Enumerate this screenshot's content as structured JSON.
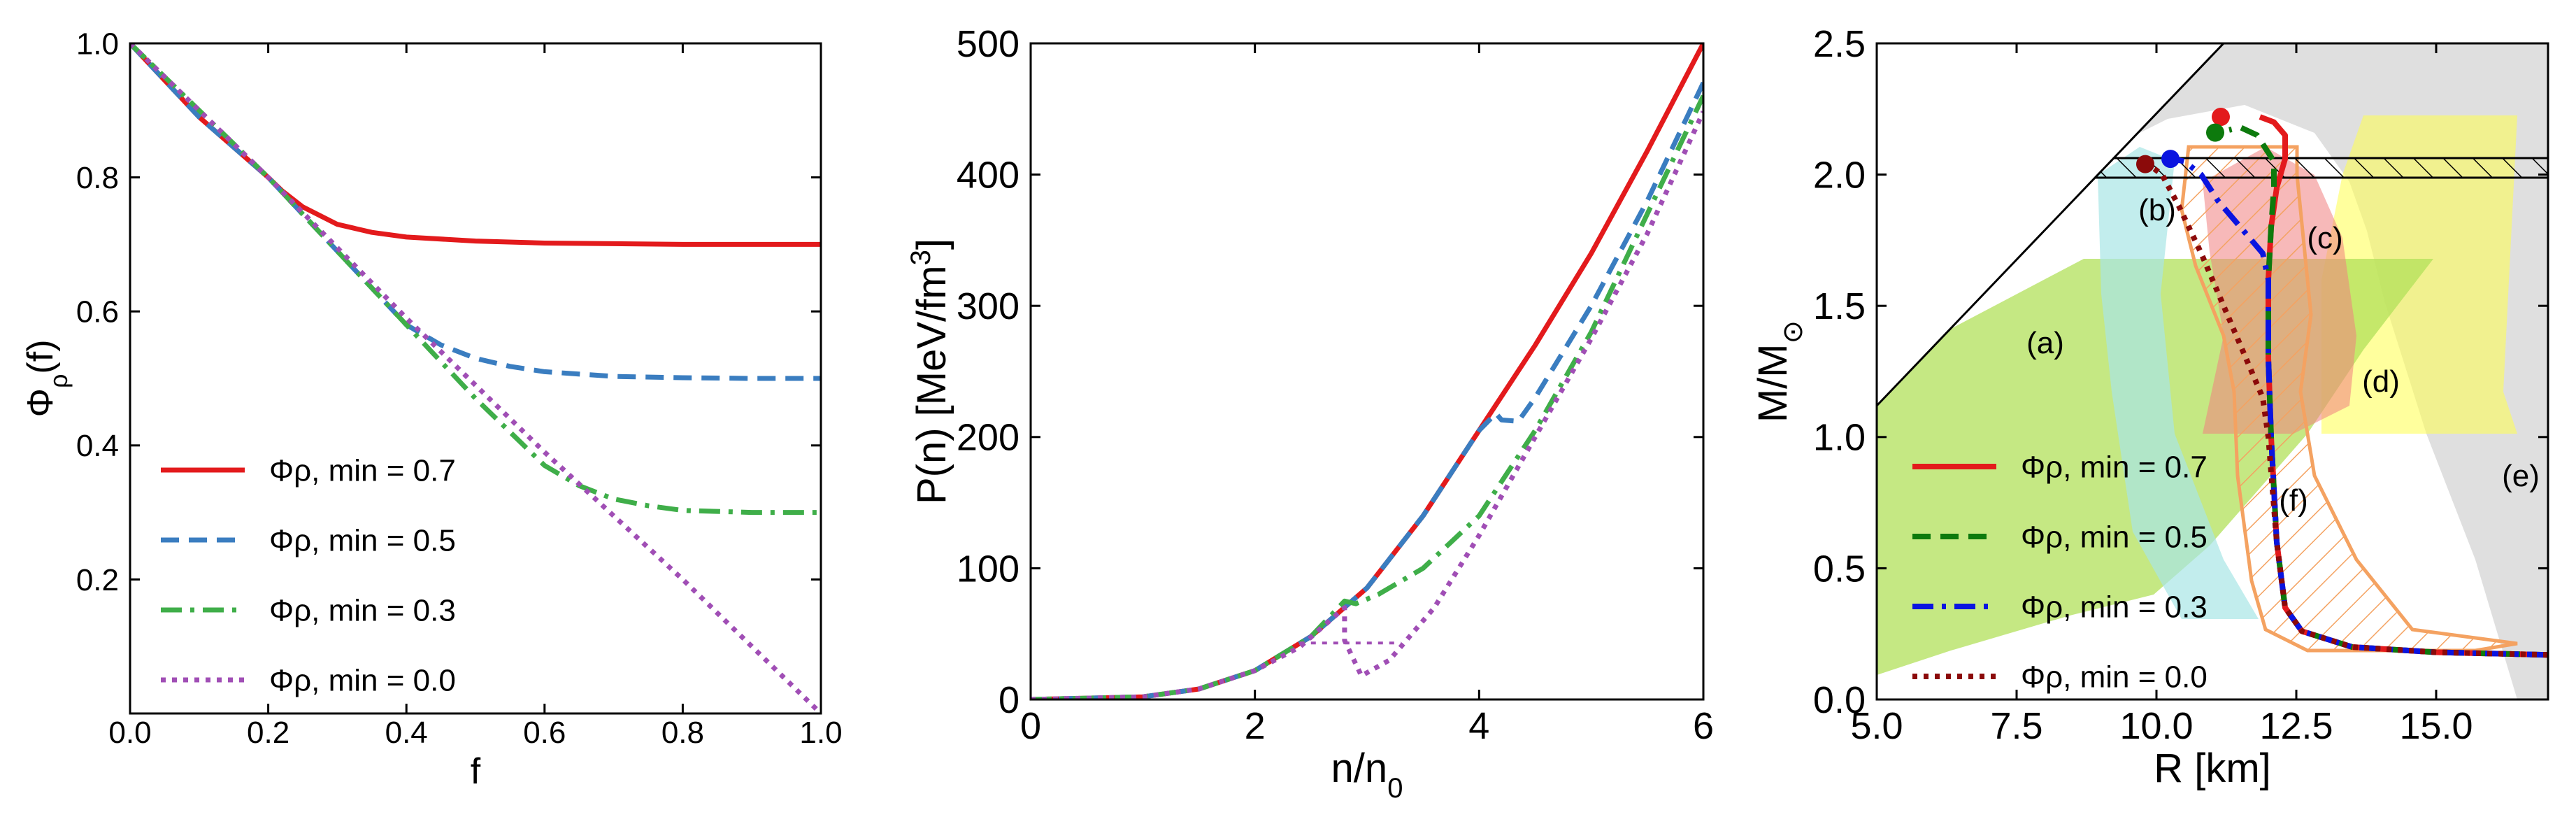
{
  "colors": {
    "red": "#e31a1c",
    "blue": "#3a7dc0",
    "green": "#3fae49",
    "purple": "#a04eb5",
    "dkgreen": "#0d7a0d",
    "pureblue": "#0a14e0",
    "maroon": "#8b0a0a",
    "orange": "#f4a261"
  },
  "chart_data": [
    {
      "type": "line",
      "xlabel": "f",
      "ylabel": "Φρ(f)",
      "xlim": [
        0.0,
        1.0
      ],
      "ylim": [
        0.0,
        1.0
      ],
      "xticks": [
        "0.0",
        "0.2",
        "0.4",
        "0.6",
        "0.8",
        "1.0"
      ],
      "yticks": [
        "0.2",
        "0.4",
        "0.6",
        "0.8",
        "1.0"
      ],
      "legend_position": "lower-left",
      "series": [
        {
          "name": "Φρ,min = 0.7",
          "label": "Φρ, min = 0.7",
          "min": 0.7,
          "color": "red",
          "dash": "solid",
          "x": [
            0.0,
            0.1,
            0.2,
            0.22,
            0.25,
            0.3,
            0.35,
            0.4,
            0.5,
            0.6,
            0.7,
            0.8,
            0.9,
            1.0
          ],
          "y": [
            1.0,
            0.89,
            0.8,
            0.78,
            0.756,
            0.73,
            0.718,
            0.711,
            0.705,
            0.702,
            0.701,
            0.7,
            0.7,
            0.7
          ]
        },
        {
          "name": "Φρ,min = 0.5",
          "label": "Φρ, min = 0.5",
          "min": 0.5,
          "color": "blue",
          "dash": "dashed",
          "x": [
            0.0,
            0.1,
            0.2,
            0.3,
            0.4,
            0.45,
            0.5,
            0.55,
            0.6,
            0.7,
            0.8,
            0.9,
            1.0
          ],
          "y": [
            1.0,
            0.89,
            0.8,
            0.69,
            0.58,
            0.55,
            0.53,
            0.518,
            0.51,
            0.503,
            0.501,
            0.5,
            0.5
          ]
        },
        {
          "name": "Φρ,min = 0.3",
          "label": "Φρ, min = 0.3",
          "min": 0.3,
          "color": "green",
          "dash": "dashdot",
          "x": [
            0.0,
            0.2,
            0.4,
            0.5,
            0.6,
            0.65,
            0.7,
            0.75,
            0.8,
            0.9,
            1.0
          ],
          "y": [
            1.0,
            0.8,
            0.58,
            0.47,
            0.37,
            0.34,
            0.32,
            0.31,
            0.303,
            0.3,
            0.3
          ]
        },
        {
          "name": "Φρ,min = 0.0",
          "label": "Φρ, min = 0.0",
          "min": 0.0,
          "color": "purple",
          "dash": "dotted",
          "x": [
            0.0,
            0.2,
            0.4,
            0.6,
            0.8,
            1.0
          ],
          "y": [
            1.0,
            0.8,
            0.59,
            0.39,
            0.2,
            0.0
          ]
        }
      ]
    },
    {
      "type": "line",
      "xlabel": "n/n0",
      "ylabel": "P(n) [MeV/fm3]",
      "xlim": [
        0,
        6
      ],
      "ylim": [
        0,
        500
      ],
      "xticks": [
        "0",
        "2",
        "4",
        "6"
      ],
      "yticks": [
        "0",
        "100",
        "200",
        "300",
        "400",
        "500"
      ],
      "series": [
        {
          "name": "Φρ,min = 0.7",
          "color": "red",
          "dash": "solid",
          "x": [
            0,
            1,
            1.5,
            2,
            2.5,
            3,
            3.5,
            4,
            4.5,
            5,
            5.5,
            6
          ],
          "y": [
            0,
            2,
            8,
            22,
            48,
            85,
            140,
            205,
            270,
            340,
            418,
            500
          ]
        },
        {
          "name": "Φρ,min = 0.5",
          "color": "blue",
          "dash": "dashed",
          "x": [
            0,
            1,
            1.5,
            2,
            2.5,
            3,
            3.5,
            4,
            4.15,
            4.2,
            4.35,
            4.5,
            5,
            5.5,
            6
          ],
          "y": [
            0,
            2,
            8,
            22,
            48,
            85,
            140,
            205,
            218,
            213,
            212,
            230,
            300,
            380,
            470
          ]
        },
        {
          "name": "Φρ,min = 0.3",
          "color": "green",
          "dash": "dashdot",
          "x": [
            0,
            1,
            1.5,
            2,
            2.5,
            2.8,
            2.9,
            3.1,
            3.5,
            4,
            4.5,
            5,
            5.5,
            6
          ],
          "y": [
            0,
            2,
            8,
            22,
            48,
            75,
            73,
            80,
            100,
            140,
            205,
            280,
            370,
            460
          ]
        },
        {
          "name": "Φρ,min = 0.0",
          "color": "purple",
          "dash": "dotted",
          "x": [
            0,
            1,
            1.5,
            2,
            2.4,
            2.8,
            2.8,
            2.95,
            3.2,
            3.6,
            4,
            4.5,
            5,
            5.5,
            6
          ],
          "y": [
            0,
            2,
            8,
            22,
            40,
            70,
            45,
            18,
            30,
            70,
            125,
            200,
            275,
            355,
            448
          ]
        },
        {
          "name": "Φρ,min = 0.0 plateau",
          "color": "purple",
          "dash": "dotted",
          "x": [
            2.4,
            3.3
          ],
          "y": [
            43,
            43
          ]
        }
      ]
    },
    {
      "type": "line",
      "xlabel": "R [km]",
      "ylabel": "M/M⊙",
      "xlim": [
        5.0,
        17.0
      ],
      "ylim": [
        0.0,
        2.5
      ],
      "xticks": [
        "5.0",
        "7.5",
        "10.0",
        "12.5",
        "15.0"
      ],
      "yticks": [
        "0.0",
        "0.5",
        "1.0",
        "1.5",
        "2.0",
        "2.5"
      ],
      "legend_position": "lower-left",
      "region_labels": [
        "(a)",
        "(b)",
        "(c)",
        "(d)",
        "(e)",
        "(f)"
      ],
      "series": [
        {
          "name": "Φρ,min = 0.7",
          "label": "Φρ, min = 0.7",
          "color": "red",
          "dash": "solid",
          "x": [
            17.0,
            15.0,
            13.5,
            12.6,
            12.3,
            12.15,
            12.05,
            12.0,
            12.0,
            12.05,
            12.15,
            12.3,
            12.3,
            12.1,
            11.85
          ],
          "y": [
            0.17,
            0.18,
            0.2,
            0.26,
            0.35,
            0.6,
            1.0,
            1.3,
            1.6,
            1.8,
            1.95,
            2.06,
            2.15,
            2.2,
            2.22
          ]
        },
        {
          "name": "Φρ,min = 0.5",
          "label": "Φρ, min = 0.5",
          "color": "dkgreen",
          "dash": "dashed",
          "x": [
            17.0,
            15.0,
            13.5,
            12.6,
            12.3,
            12.15,
            12.05,
            12.0,
            12.0,
            12.05,
            12.1,
            12.1,
            11.8,
            11.5,
            11.3
          ],
          "y": [
            0.17,
            0.18,
            0.2,
            0.26,
            0.35,
            0.6,
            1.0,
            1.3,
            1.6,
            1.8,
            1.95,
            2.05,
            2.15,
            2.18,
            2.17
          ]
        },
        {
          "name": "Φρ,min = 0.3",
          "label": "Φρ, min = 0.3",
          "color": "pureblue",
          "dash": "dashdot",
          "x": [
            17.0,
            15.0,
            13.5,
            12.6,
            12.3,
            12.15,
            12.05,
            12.0,
            12.0,
            12.0,
            11.9,
            11.5,
            11.1,
            10.8,
            10.5,
            10.3
          ],
          "y": [
            0.17,
            0.18,
            0.2,
            0.26,
            0.35,
            0.6,
            1.0,
            1.3,
            1.45,
            1.6,
            1.7,
            1.8,
            1.9,
            2.0,
            2.05,
            2.06
          ]
        },
        {
          "name": "Φρ,min = 0.0",
          "label": "Φρ, min = 0.0",
          "color": "maroon",
          "dash": "dotted",
          "x": [
            17.0,
            15.0,
            13.5,
            12.6,
            12.3,
            12.15,
            12.0,
            11.9,
            11.6,
            11.2,
            10.8,
            10.4,
            10.1,
            9.85
          ],
          "y": [
            0.17,
            0.18,
            0.2,
            0.26,
            0.35,
            0.6,
            1.0,
            1.15,
            1.3,
            1.5,
            1.7,
            1.88,
            2.0,
            2.04
          ]
        }
      ],
      "maxima": [
        {
          "x": 11.15,
          "y": 2.22,
          "color": "red"
        },
        {
          "x": 11.05,
          "y": 2.16,
          "color": "dkgreen"
        },
        {
          "x": 10.25,
          "y": 2.06,
          "color": "pureblue"
        },
        {
          "x": 9.8,
          "y": 2.04,
          "color": "maroon"
        }
      ]
    }
  ]
}
